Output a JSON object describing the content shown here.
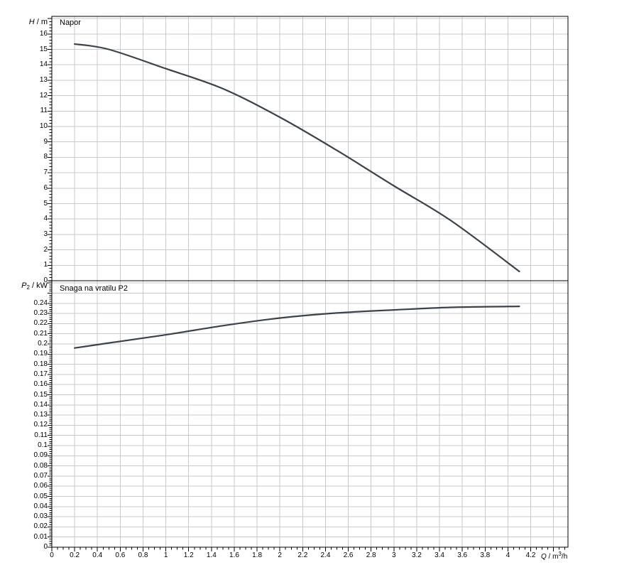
{
  "style": {
    "background": "#ffffff",
    "curve_color": "#3a424b",
    "grid_color": "#c9c9c9",
    "axis_color": "#000000",
    "text_color": "#000000"
  },
  "labels": {
    "h_axis": {
      "symbol": "H",
      "separator": " / ",
      "unit": "m"
    },
    "p_axis": {
      "symbol": "P",
      "subscript": "2",
      "separator": " / ",
      "unit": "kW"
    },
    "q_axis": {
      "symbol": "Q",
      "separator": " / ",
      "unit": "m",
      "unit_sup": "3",
      "unit_suffix": "/h"
    }
  },
  "chart_data": [
    {
      "type": "line",
      "title": "Napor",
      "ylabel": "H / m",
      "xlabel": "Q / m3/h",
      "x": [
        0.2,
        0.5,
        1.0,
        1.5,
        2.0,
        2.5,
        3.0,
        3.5,
        4.1
      ],
      "y": [
        15.35,
        15.0,
        13.75,
        12.45,
        10.6,
        8.45,
        6.15,
        3.9,
        0.6
      ],
      "xlim": [
        0,
        4.53
      ],
      "ylim": [
        0,
        17.1
      ],
      "x_major_step": 0.2,
      "x_minor_step": 0.05,
      "y_major_step": 1,
      "y_minor_step": 0.2,
      "grid": true,
      "legend": "none",
      "y_tick_labels": [
        "0",
        "1",
        "2",
        "3",
        "4",
        "5",
        "6",
        "7",
        "8",
        "9",
        "10",
        "11",
        "12",
        "13",
        "14",
        "15",
        "16"
      ],
      "x_tick_labels": [
        "0",
        "0.2",
        "0.4",
        "0.6",
        "0.8",
        "1",
        "1.2",
        "1.4",
        "1.6",
        "1.8",
        "2",
        "2.2",
        "2.4",
        "2.6",
        "2.8",
        "3",
        "3.2",
        "3.4",
        "3.6",
        "3.8",
        "4",
        "4.2"
      ]
    },
    {
      "type": "line",
      "title": "Snaga na vratilu P2",
      "ylabel": "P2 / kW",
      "xlabel": "Q / m3/h",
      "x": [
        0.2,
        0.5,
        1.0,
        1.5,
        2.0,
        2.5,
        3.0,
        3.5,
        4.1
      ],
      "y": [
        0.196,
        0.201,
        0.209,
        0.218,
        0.2255,
        0.2305,
        0.2335,
        0.236,
        0.237
      ],
      "xlim": [
        0,
        4.53
      ],
      "ylim": [
        0,
        0.262
      ],
      "x_major_step": 0.2,
      "x_minor_step": 0.05,
      "y_major_step": 0.01,
      "y_minor_step": 0.002,
      "grid": true,
      "legend": "none",
      "y_tick_labels": [
        "0",
        "0.01",
        "0.02",
        "0.03",
        "0.04",
        "0.05",
        "0.06",
        "0.07",
        "0.08",
        "0.09",
        "0.1",
        "0.11",
        "0.12",
        "0.13",
        "0.14",
        "0.15",
        "0.16",
        "0.17",
        "0.18",
        "0.19",
        "0.2",
        "0.21",
        "0.22",
        "0.23",
        "0.24"
      ]
    }
  ]
}
